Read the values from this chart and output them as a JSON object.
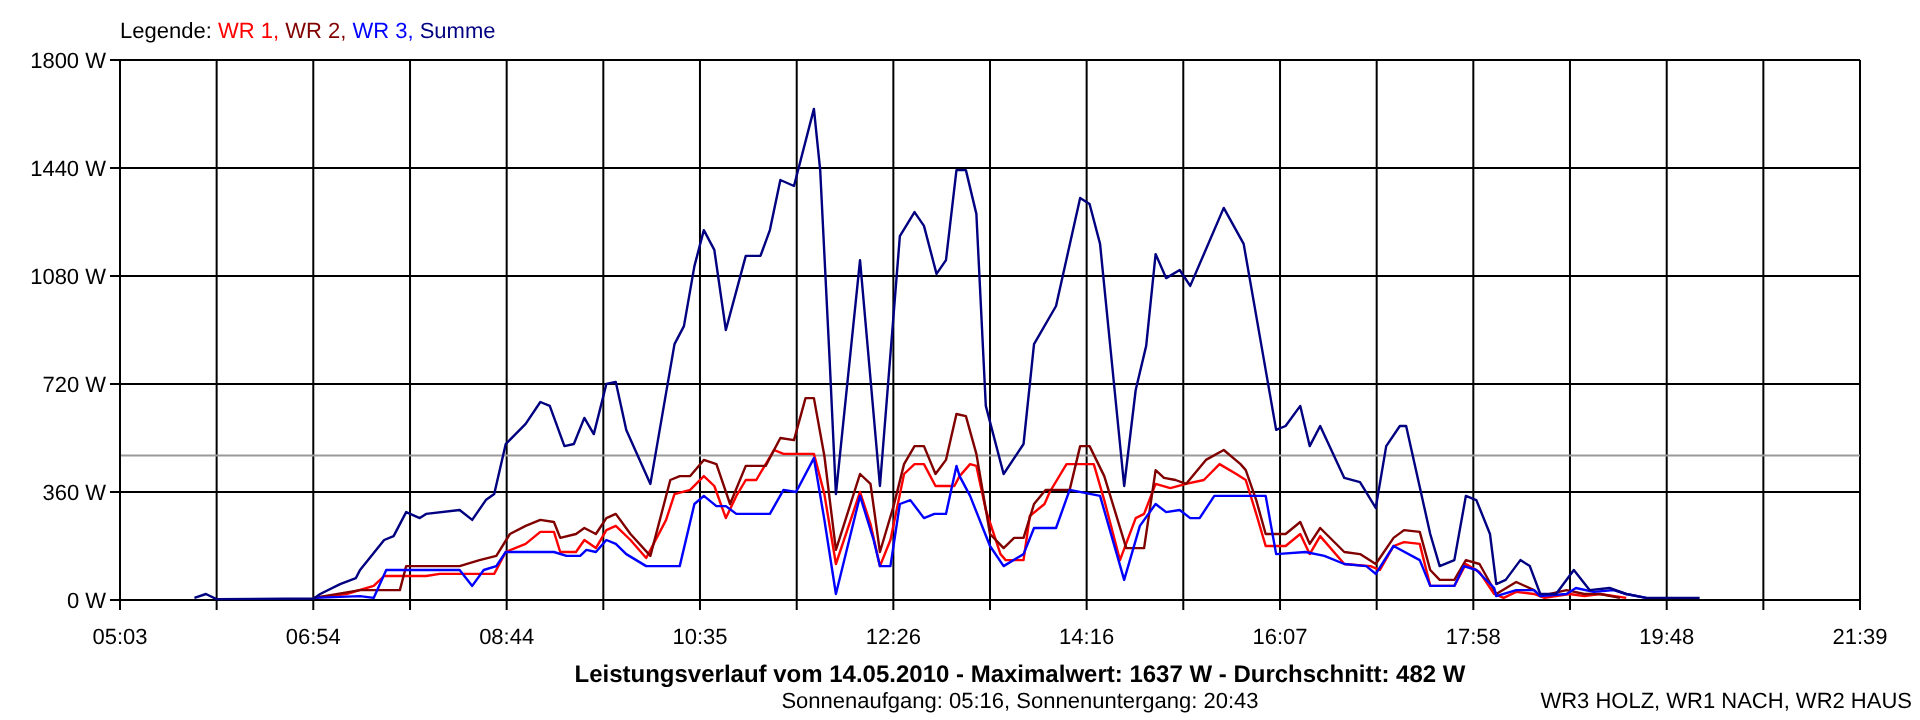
{
  "chart_data": {
    "type": "line",
    "title": "Leistungsverlauf vom 14.05.2010 - Maximalwert: 1637 W - Durchschnitt: 482 W",
    "subtitle": "Sonnenaufgang: 05:16, Sonnenuntergang: 20:43",
    "annotations": [
      "WR3 HOLZ, WR1 NACH, WR2 HAUS"
    ],
    "legend_title": "Legende:",
    "legend": "top left",
    "grid": true,
    "marker": "none",
    "line_style": "solid",
    "xlim": [
      5.05,
      21.65
    ],
    "ylim": [
      0,
      1800
    ],
    "xticks": [
      {
        "value": 5.05,
        "label": "05:03"
      },
      {
        "value": 5.972,
        "label": null
      },
      {
        "value": 6.894,
        "label": "06:54"
      },
      {
        "value": 7.817,
        "label": null
      },
      {
        "value": 8.739,
        "label": "08:44"
      },
      {
        "value": 9.661,
        "label": null
      },
      {
        "value": 10.583,
        "label": "10:35"
      },
      {
        "value": 11.506,
        "label": null
      },
      {
        "value": 12.428,
        "label": "12:26"
      },
      {
        "value": 13.35,
        "label": null
      },
      {
        "value": 14.272,
        "label": "14:16"
      },
      {
        "value": 15.194,
        "label": null
      },
      {
        "value": 16.117,
        "label": "16:07"
      },
      {
        "value": 17.039,
        "label": null
      },
      {
        "value": 17.961,
        "label": "17:58"
      },
      {
        "value": 18.883,
        "label": null
      },
      {
        "value": 19.806,
        "label": "19:48"
      },
      {
        "value": 20.728,
        "label": null
      },
      {
        "value": 21.65,
        "label": "21:39"
      }
    ],
    "yticks": [
      {
        "value": 0,
        "label": "0 W"
      },
      {
        "value": 360,
        "label": "360 W"
      },
      {
        "value": 720,
        "label": "720 W"
      },
      {
        "value": 1080,
        "label": "1080 W"
      },
      {
        "value": 1440,
        "label": "1440 W"
      },
      {
        "value": 1800,
        "label": "1800 W"
      }
    ],
    "ref_lines": [
      {
        "axis": "y",
        "value": 482,
        "color": "#999999"
      }
    ],
    "series": [
      {
        "name": "WR 1,",
        "color": "#ff0000",
        "x": [
          6.9,
          7.21,
          7.47,
          7.57,
          7.97,
          8.1,
          8.29,
          8.62,
          8.73,
          8.92,
          9.06,
          9.19,
          9.25,
          9.4,
          9.48,
          9.59,
          9.69,
          9.78,
          9.92,
          10.07,
          10.26,
          10.34,
          10.49,
          10.62,
          10.72,
          10.83,
          10.93,
          11.02,
          11.12,
          11.29,
          11.38,
          11.67,
          11.77,
          11.88,
          12.11,
          12.21,
          12.3,
          12.4,
          12.53,
          12.63,
          12.72,
          12.83,
          13.01,
          13.06,
          13.16,
          13.22,
          13.31,
          13.45,
          13.5,
          13.67,
          13.73,
          13.87,
          13.92,
          14.08,
          14.34,
          14.44,
          14.59,
          14.74,
          14.82,
          14.93,
          15.07,
          15.22,
          15.39,
          15.54,
          15.7,
          15.79,
          15.89,
          15.98,
          16.17,
          16.31,
          16.4,
          16.5,
          16.73,
          16.98,
          17.07,
          17.2,
          17.3,
          17.45,
          17.55,
          17.78,
          17.89,
          18.02,
          18.16,
          18.25,
          18.37,
          18.54,
          18.64,
          18.88,
          19.02,
          19.17,
          19.42
        ],
        "values": [
          7,
          20,
          47,
          80,
          80,
          87,
          87,
          87,
          160,
          187,
          227,
          227,
          160,
          160,
          200,
          173,
          233,
          247,
          200,
          140,
          267,
          353,
          367,
          413,
          380,
          273,
          347,
          400,
          400,
          500,
          487,
          487,
          353,
          120,
          360,
          253,
          113,
          200,
          420,
          453,
          453,
          380,
          380,
          413,
          453,
          447,
          300,
          153,
          133,
          133,
          280,
          320,
          360,
          453,
          453,
          333,
          133,
          273,
          287,
          387,
          373,
          387,
          400,
          453,
          420,
          400,
          287,
          180,
          180,
          220,
          153,
          213,
          120,
          113,
          100,
          180,
          193,
          187,
          47,
          47,
          120,
          93,
          20,
          7,
          27,
          20,
          7,
          20,
          13,
          20,
          7
        ]
      },
      {
        "name": "WR 2,",
        "color": "#800000",
        "x": [
          6.9,
          7.34,
          7.72,
          7.78,
          8.29,
          8.48,
          8.64,
          8.77,
          8.92,
          9.06,
          9.19,
          9.25,
          9.4,
          9.48,
          9.59,
          9.69,
          9.78,
          9.92,
          10.11,
          10.3,
          10.39,
          10.49,
          10.62,
          10.74,
          10.87,
          11.02,
          11.21,
          11.35,
          11.48,
          11.59,
          11.67,
          11.77,
          11.88,
          12.11,
          12.21,
          12.3,
          12.43,
          12.53,
          12.63,
          12.72,
          12.83,
          12.93,
          13.03,
          13.12,
          13.22,
          13.35,
          13.48,
          13.58,
          13.67,
          13.77,
          13.88,
          14.11,
          14.21,
          14.3,
          14.44,
          14.65,
          14.82,
          14.93,
          15.01,
          15.12,
          15.22,
          15.41,
          15.58,
          15.74,
          15.79,
          15.89,
          15.98,
          16.17,
          16.31,
          16.4,
          16.5,
          16.73,
          16.88,
          17.03,
          17.2,
          17.3,
          17.45,
          17.55,
          17.64,
          17.78,
          17.89,
          18.02,
          18.18,
          18.37,
          18.54,
          18.6,
          18.85,
          19.02,
          19.17,
          19.36
        ],
        "values": [
          7,
          33,
          33,
          113,
          113,
          133,
          147,
          220,
          247,
          267,
          260,
          207,
          220,
          240,
          220,
          273,
          287,
          220,
          147,
          400,
          413,
          413,
          467,
          453,
          320,
          447,
          447,
          540,
          533,
          673,
          673,
          480,
          167,
          420,
          387,
          160,
          313,
          453,
          513,
          513,
          420,
          467,
          620,
          613,
          487,
          220,
          173,
          207,
          207,
          320,
          367,
          367,
          513,
          513,
          413,
          173,
          173,
          433,
          407,
          400,
          387,
          467,
          500,
          453,
          433,
          333,
          220,
          220,
          260,
          187,
          240,
          160,
          153,
          120,
          207,
          233,
          227,
          100,
          67,
          67,
          133,
          120,
          20,
          60,
          33,
          13,
          33,
          20,
          20,
          7
        ]
      },
      {
        "name": "WR 3,",
        "color": "#0000ff",
        "x": [
          6.9,
          7.34,
          7.47,
          7.59,
          8.29,
          8.41,
          8.52,
          8.64,
          8.73,
          9.19,
          9.31,
          9.44,
          9.5,
          9.59,
          9.69,
          9.78,
          9.88,
          10.07,
          10.39,
          10.53,
          10.62,
          10.74,
          10.83,
          10.93,
          11.25,
          11.38,
          11.5,
          11.67,
          11.77,
          11.88,
          12.11,
          12.24,
          12.3,
          12.4,
          12.49,
          12.59,
          12.72,
          12.82,
          12.93,
          13.03,
          13.06,
          13.16,
          13.35,
          13.48,
          13.67,
          13.77,
          13.98,
          14.11,
          14.4,
          14.63,
          14.78,
          14.93,
          15.03,
          15.16,
          15.26,
          15.35,
          15.49,
          15.98,
          16.08,
          16.36,
          16.54,
          16.73,
          16.94,
          17.03,
          17.2,
          17.45,
          17.55,
          17.78,
          17.87,
          17.99,
          18.16,
          18.18,
          18.37,
          18.54,
          18.6,
          18.85,
          18.94,
          19.11,
          19.3,
          19.42,
          19.61
        ],
        "values": [
          7,
          13,
          7,
          100,
          100,
          47,
          100,
          113,
          160,
          160,
          147,
          147,
          167,
          160,
          200,
          187,
          153,
          113,
          113,
          320,
          347,
          313,
          313,
          287,
          287,
          367,
          360,
          473,
          267,
          20,
          347,
          200,
          113,
          113,
          320,
          333,
          273,
          287,
          287,
          447,
          413,
          347,
          180,
          113,
          153,
          240,
          240,
          367,
          347,
          67,
          247,
          320,
          293,
          300,
          273,
          273,
          347,
          347,
          153,
          160,
          147,
          120,
          113,
          87,
          180,
          133,
          47,
          47,
          113,
          100,
          40,
          13,
          33,
          33,
          13,
          20,
          40,
          27,
          33,
          20,
          7
        ]
      },
      {
        "name": "Summe",
        "color": "#000080",
        "x": [
          5.76,
          5.87,
          5.97,
          6.9,
          6.96,
          7.15,
          7.3,
          7.34,
          7.57,
          7.66,
          7.78,
          7.91,
          7.97,
          8.29,
          8.41,
          8.54,
          8.62,
          8.73,
          8.92,
          9.06,
          9.15,
          9.29,
          9.38,
          9.48,
          9.57,
          9.69,
          9.78,
          9.88,
          10.11,
          10.34,
          10.43,
          10.53,
          10.62,
          10.72,
          10.83,
          11.02,
          11.16,
          11.25,
          11.35,
          11.48,
          11.67,
          11.73,
          11.82,
          11.88,
          12.11,
          12.3,
          12.49,
          12.63,
          12.72,
          12.84,
          12.93,
          13.03,
          13.12,
          13.22,
          13.31,
          13.48,
          13.67,
          13.77,
          13.98,
          14.21,
          14.3,
          14.4,
          14.63,
          14.74,
          14.84,
          14.93,
          15.03,
          15.16,
          15.26,
          15.58,
          15.77,
          16.08,
          16.17,
          16.31,
          16.4,
          16.5,
          16.73,
          16.88,
          17.03,
          17.13,
          17.26,
          17.32,
          17.55,
          17.64,
          17.78,
          17.89,
          17.99,
          18.12,
          18.18,
          18.27,
          18.41,
          18.5,
          18.6,
          18.75,
          18.92,
          19.07,
          19.26,
          19.42,
          19.61,
          20.12
        ],
        "values": [
          7,
          20,
          3,
          5,
          20,
          53,
          73,
          100,
          200,
          213,
          293,
          273,
          287,
          300,
          267,
          333,
          353,
          520,
          587,
          660,
          647,
          513,
          520,
          607,
          553,
          720,
          727,
          567,
          387,
          853,
          913,
          1113,
          1233,
          1167,
          900,
          1147,
          1147,
          1233,
          1400,
          1380,
          1637,
          1433,
          800,
          353,
          1133,
          380,
          1213,
          1293,
          1247,
          1087,
          1133,
          1433,
          1433,
          1287,
          647,
          420,
          520,
          853,
          980,
          1340,
          1320,
          1187,
          380,
          700,
          847,
          1153,
          1073,
          1100,
          1047,
          1307,
          1187,
          567,
          580,
          647,
          513,
          580,
          407,
          393,
          307,
          513,
          580,
          580,
          220,
          113,
          133,
          347,
          333,
          220,
          53,
          67,
          133,
          113,
          20,
          20,
          100,
          33,
          40,
          20,
          7,
          7
        ]
      }
    ]
  }
}
